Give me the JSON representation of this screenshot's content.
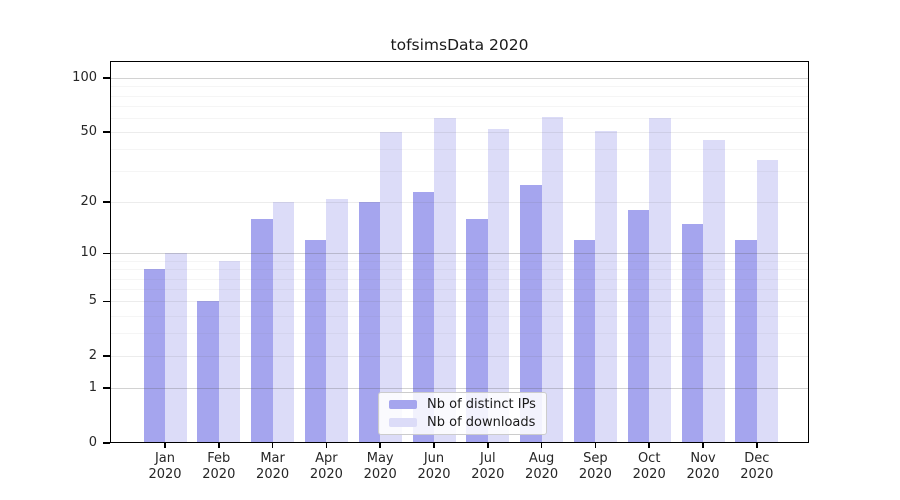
{
  "chart_data": {
    "type": "bar",
    "title": "tofsimsData 2020",
    "year_label": "2020",
    "categories": [
      "Jan",
      "Feb",
      "Mar",
      "Apr",
      "May",
      "Jun",
      "Jul",
      "Aug",
      "Sep",
      "Oct",
      "Nov",
      "Dec"
    ],
    "series": [
      {
        "name": "Nb of distinct IPs",
        "color": "#a5a5ee",
        "values": [
          8,
          5,
          16,
          12,
          20,
          23,
          16,
          25,
          12,
          18,
          15,
          12
        ]
      },
      {
        "name": "Nb of downloads",
        "color": "#dcdcf8",
        "values": [
          10,
          9,
          20,
          21,
          50,
          60,
          52,
          61,
          51,
          60,
          45,
          35
        ]
      }
    ],
    "xlabel": "",
    "ylabel": "",
    "y_scale": "log(value+1)",
    "ylim": [
      0,
      100
    ],
    "y_ticks": [
      0,
      1,
      2,
      5,
      10,
      20,
      50,
      100
    ],
    "y_minor_gridlines": [
      3,
      4,
      6,
      7,
      8,
      9,
      30,
      40,
      60,
      70,
      80,
      90
    ],
    "grid": "on",
    "legend_position": "inside-bottom-center",
    "colors": {
      "axis": "#000000",
      "major_decade_gridline": "#c9c9c9",
      "major_gridline": "#e3e3e3",
      "minor_gridline": "#f1f1f1",
      "text": "#262626"
    }
  }
}
